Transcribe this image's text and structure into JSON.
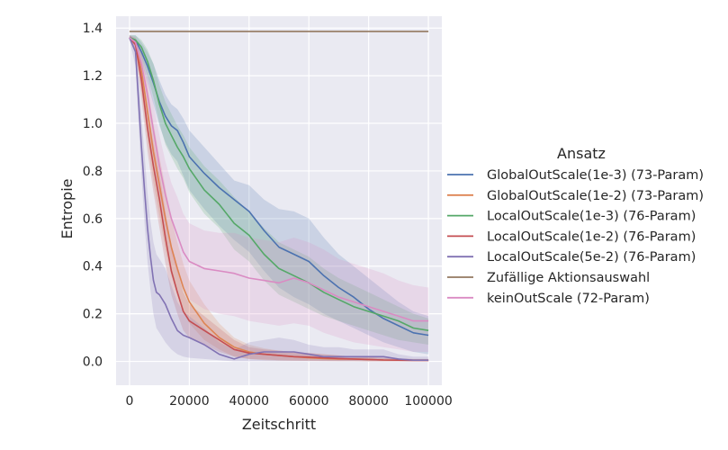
{
  "chart_data": {
    "type": "line",
    "title": "",
    "xlabel": "Zeitschritt",
    "ylabel": "Entropie",
    "xlim": [
      -4500,
      104500
    ],
    "ylim": [
      -0.1,
      1.45
    ],
    "xticks": [
      0,
      20000,
      40000,
      60000,
      80000,
      100000
    ],
    "xtick_labels": [
      "0",
      "20000",
      "40000",
      "60000",
      "80000",
      "100000"
    ],
    "yticks": [
      0.0,
      0.2,
      0.4,
      0.6,
      0.8,
      1.0,
      1.2,
      1.4
    ],
    "ytick_labels": [
      "0.0",
      "0.2",
      "0.4",
      "0.6",
      "0.8",
      "1.0",
      "1.2",
      "1.4"
    ],
    "grid": true,
    "background": "#eaeaf2",
    "legend_title": "Ansatz",
    "legend_position": "right",
    "series": [
      {
        "name": "GlobalOutScale(1e-3) (73-Param)",
        "color": "#4c72b0",
        "x": [
          0,
          2000,
          4000,
          6000,
          8000,
          10000,
          12000,
          14000,
          16000,
          18000,
          20000,
          25000,
          30000,
          35000,
          40000,
          45000,
          50000,
          55000,
          60000,
          65000,
          70000,
          75000,
          80000,
          85000,
          90000,
          95000,
          100000
        ],
        "y": [
          1.36,
          1.35,
          1.3,
          1.24,
          1.17,
          1.09,
          1.03,
          0.99,
          0.97,
          0.92,
          0.86,
          0.79,
          0.73,
          0.68,
          0.63,
          0.55,
          0.48,
          0.45,
          0.42,
          0.36,
          0.31,
          0.27,
          0.22,
          0.18,
          0.15,
          0.12,
          0.11
        ],
        "lower": [
          1.35,
          1.33,
          1.26,
          1.17,
          1.08,
          0.99,
          0.92,
          0.87,
          0.84,
          0.78,
          0.72,
          0.64,
          0.57,
          0.51,
          0.46,
          0.38,
          0.31,
          0.27,
          0.24,
          0.2,
          0.17,
          0.14,
          0.11,
          0.08,
          0.06,
          0.04,
          0.03
        ],
        "upper": [
          1.37,
          1.37,
          1.34,
          1.3,
          1.25,
          1.18,
          1.12,
          1.08,
          1.06,
          1.02,
          0.97,
          0.9,
          0.83,
          0.76,
          0.74,
          0.68,
          0.64,
          0.63,
          0.6,
          0.52,
          0.45,
          0.4,
          0.35,
          0.3,
          0.25,
          0.21,
          0.19
        ]
      },
      {
        "name": "GlobalOutScale(1e-2) (73-Param)",
        "color": "#dd8452",
        "x": [
          0,
          2000,
          4000,
          6000,
          8000,
          10000,
          12000,
          14000,
          16000,
          18000,
          20000,
          25000,
          30000,
          35000,
          40000,
          45000,
          50000,
          55000,
          60000,
          65000,
          70000,
          75000,
          80000,
          85000,
          90000,
          95000,
          100000
        ],
        "y": [
          1.36,
          1.34,
          1.22,
          1.05,
          0.88,
          0.74,
          0.6,
          0.48,
          0.39,
          0.31,
          0.25,
          0.16,
          0.1,
          0.06,
          0.04,
          0.03,
          0.025,
          0.02,
          0.015,
          0.012,
          0.01,
          0.01,
          0.008,
          0.006,
          0.005,
          0.005,
          0.005
        ],
        "lower": [
          1.35,
          1.31,
          1.13,
          0.93,
          0.75,
          0.61,
          0.47,
          0.36,
          0.28,
          0.21,
          0.16,
          0.09,
          0.05,
          0.02,
          0.01,
          0.005,
          0.003,
          0.002,
          0.002,
          0.001,
          0.001,
          0.001,
          0.0,
          0.0,
          0.0,
          0.0,
          0.0
        ],
        "upper": [
          1.37,
          1.36,
          1.3,
          1.16,
          1.0,
          0.86,
          0.73,
          0.6,
          0.5,
          0.41,
          0.34,
          0.24,
          0.16,
          0.1,
          0.07,
          0.055,
          0.045,
          0.04,
          0.035,
          0.03,
          0.025,
          0.02,
          0.018,
          0.015,
          0.012,
          0.01,
          0.01
        ]
      },
      {
        "name": "LocalOutScale(1e-3) (76-Param)",
        "color": "#55a868",
        "x": [
          0,
          2000,
          4000,
          6000,
          8000,
          10000,
          12000,
          14000,
          16000,
          18000,
          20000,
          25000,
          30000,
          35000,
          40000,
          45000,
          50000,
          55000,
          60000,
          65000,
          70000,
          75000,
          80000,
          85000,
          90000,
          95000,
          100000
        ],
        "y": [
          1.36,
          1.35,
          1.32,
          1.26,
          1.18,
          1.08,
          1.0,
          0.95,
          0.9,
          0.86,
          0.81,
          0.72,
          0.66,
          0.58,
          0.53,
          0.45,
          0.39,
          0.36,
          0.33,
          0.29,
          0.26,
          0.23,
          0.21,
          0.19,
          0.17,
          0.14,
          0.13
        ],
        "lower": [
          1.35,
          1.33,
          1.28,
          1.2,
          1.11,
          1.0,
          0.91,
          0.86,
          0.81,
          0.77,
          0.71,
          0.62,
          0.56,
          0.47,
          0.42,
          0.34,
          0.28,
          0.25,
          0.22,
          0.19,
          0.17,
          0.15,
          0.13,
          0.11,
          0.09,
          0.08,
          0.07
        ],
        "upper": [
          1.37,
          1.37,
          1.35,
          1.31,
          1.25,
          1.16,
          1.09,
          1.04,
          0.99,
          0.95,
          0.9,
          0.82,
          0.76,
          0.69,
          0.63,
          0.56,
          0.5,
          0.47,
          0.44,
          0.39,
          0.35,
          0.32,
          0.29,
          0.26,
          0.23,
          0.2,
          0.18
        ]
      },
      {
        "name": "LocalOutScale(1e-2) (76-Param)",
        "color": "#c44e52",
        "x": [
          0,
          2000,
          4000,
          6000,
          8000,
          10000,
          12000,
          14000,
          16000,
          18000,
          20000,
          25000,
          30000,
          35000,
          40000,
          45000,
          50000,
          55000,
          60000,
          65000,
          70000,
          75000,
          80000,
          85000,
          90000,
          95000,
          100000
        ],
        "y": [
          1.36,
          1.33,
          1.18,
          0.98,
          0.82,
          0.68,
          0.52,
          0.38,
          0.29,
          0.21,
          0.17,
          0.13,
          0.09,
          0.05,
          0.035,
          0.03,
          0.025,
          0.02,
          0.018,
          0.015,
          0.012,
          0.01,
          0.008,
          0.006,
          0.005,
          0.004,
          0.004
        ],
        "lower": [
          1.35,
          1.3,
          1.1,
          0.88,
          0.71,
          0.56,
          0.41,
          0.28,
          0.2,
          0.13,
          0.1,
          0.07,
          0.04,
          0.02,
          0.01,
          0.008,
          0.005,
          0.004,
          0.003,
          0.002,
          0.001,
          0.001,
          0.0,
          0.0,
          0.0,
          0.0,
          0.0
        ],
        "upper": [
          1.37,
          1.35,
          1.25,
          1.07,
          0.92,
          0.79,
          0.63,
          0.48,
          0.38,
          0.29,
          0.24,
          0.19,
          0.14,
          0.09,
          0.06,
          0.05,
          0.045,
          0.04,
          0.035,
          0.03,
          0.025,
          0.02,
          0.017,
          0.014,
          0.012,
          0.01,
          0.01
        ]
      },
      {
        "name": "LocalOutScale(5e-2) (76-Param)",
        "color": "#8172b3",
        "x": [
          0,
          2000,
          3000,
          4000,
          5000,
          6000,
          7000,
          8000,
          9000,
          10000,
          12000,
          14000,
          16000,
          18000,
          20000,
          25000,
          30000,
          35000,
          40000,
          45000,
          50000,
          55000,
          60000,
          65000,
          70000,
          75000,
          80000,
          85000,
          90000,
          95000,
          100000
        ],
        "y": [
          1.36,
          1.3,
          1.1,
          0.9,
          0.72,
          0.56,
          0.44,
          0.34,
          0.29,
          0.28,
          0.24,
          0.18,
          0.13,
          0.11,
          0.1,
          0.07,
          0.03,
          0.01,
          0.03,
          0.04,
          0.04,
          0.04,
          0.03,
          0.02,
          0.02,
          0.02,
          0.02,
          0.02,
          0.01,
          0.005,
          0.005
        ],
        "lower": [
          1.35,
          1.24,
          1.0,
          0.78,
          0.58,
          0.42,
          0.3,
          0.2,
          0.14,
          0.12,
          0.08,
          0.05,
          0.03,
          0.02,
          0.015,
          0.01,
          0.005,
          0.0,
          0.0,
          0.0,
          0.0,
          0.0,
          0.0,
          0.0,
          0.0,
          0.0,
          0.0,
          0.0,
          0.0,
          0.0,
          0.0
        ],
        "upper": [
          1.37,
          1.35,
          1.2,
          1.03,
          0.87,
          0.71,
          0.59,
          0.5,
          0.45,
          0.43,
          0.39,
          0.32,
          0.25,
          0.21,
          0.19,
          0.14,
          0.08,
          0.05,
          0.08,
          0.09,
          0.1,
          0.09,
          0.07,
          0.06,
          0.06,
          0.05,
          0.05,
          0.05,
          0.03,
          0.02,
          0.02
        ]
      },
      {
        "name": "Zufällige Aktionsauswahl",
        "color": "#937860",
        "x": [
          0,
          100000
        ],
        "y": [
          1.386,
          1.386
        ]
      },
      {
        "name": "keinOutScale (72-Param)",
        "color": "#da8bc3",
        "x": [
          0,
          2000,
          4000,
          6000,
          8000,
          10000,
          12000,
          14000,
          16000,
          18000,
          20000,
          25000,
          30000,
          35000,
          40000,
          45000,
          50000,
          55000,
          60000,
          65000,
          70000,
          75000,
          80000,
          85000,
          90000,
          95000,
          100000
        ],
        "y": [
          1.36,
          1.34,
          1.25,
          1.12,
          0.97,
          0.82,
          0.7,
          0.6,
          0.53,
          0.46,
          0.42,
          0.39,
          0.38,
          0.37,
          0.35,
          0.34,
          0.33,
          0.35,
          0.33,
          0.3,
          0.27,
          0.25,
          0.23,
          0.21,
          0.19,
          0.17,
          0.17
        ],
        "lower": [
          1.35,
          1.31,
          1.18,
          1.02,
          0.85,
          0.69,
          0.56,
          0.45,
          0.37,
          0.3,
          0.26,
          0.22,
          0.2,
          0.19,
          0.17,
          0.16,
          0.15,
          0.16,
          0.15,
          0.12,
          0.1,
          0.08,
          0.07,
          0.06,
          0.05,
          0.04,
          0.04
        ],
        "upper": [
          1.37,
          1.36,
          1.31,
          1.21,
          1.08,
          0.95,
          0.84,
          0.75,
          0.69,
          0.62,
          0.58,
          0.55,
          0.54,
          0.54,
          0.52,
          0.51,
          0.5,
          0.52,
          0.5,
          0.47,
          0.43,
          0.41,
          0.39,
          0.37,
          0.34,
          0.32,
          0.31
        ]
      }
    ]
  }
}
